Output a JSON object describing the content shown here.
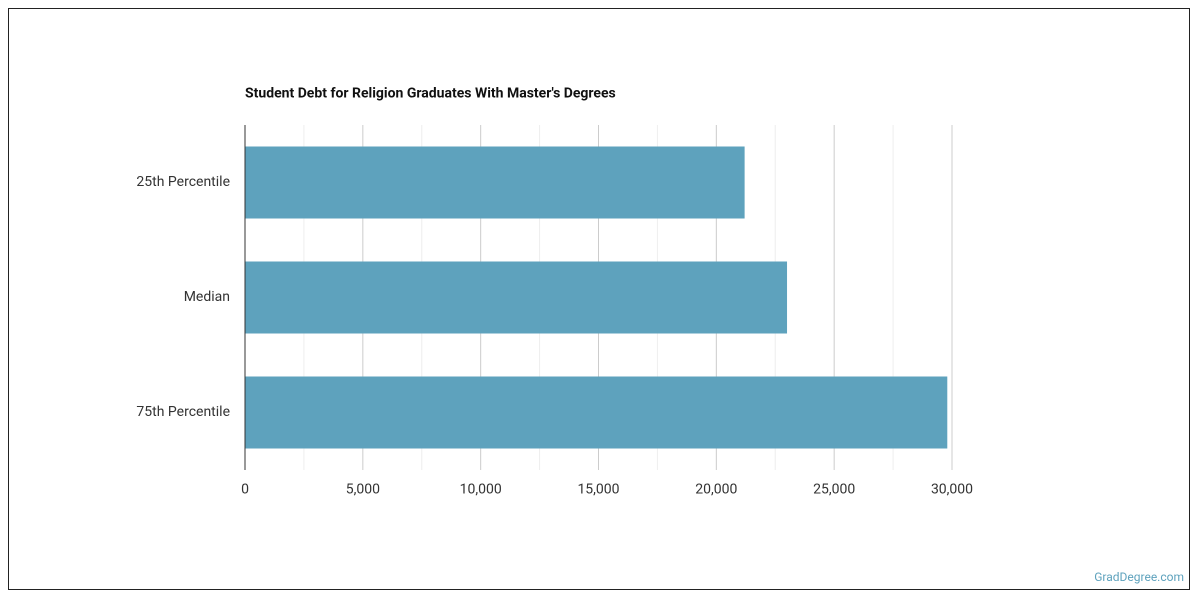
{
  "chart_data": {
    "type": "hbar",
    "title": "Student Debt for Religion Graduates With Master's Degrees",
    "categories": [
      "25th Percentile",
      "Median",
      "75th Percentile"
    ],
    "values": [
      21200,
      23000,
      29800
    ],
    "color": "#5ea2bd",
    "xlim": [
      0,
      30000
    ],
    "xticks": [
      0,
      {
        "value": 5000,
        "label": "5,000"
      },
      {
        "value": 10000,
        "label": "10,000"
      },
      {
        "value": 15000,
        "label": "15,000"
      },
      {
        "value": 20000,
        "label": "20,000"
      },
      {
        "value": 25000,
        "label": "25,000"
      },
      {
        "value": 30000,
        "label": "30,000"
      }
    ],
    "minor_xticks": [
      2500,
      7500,
      12500,
      17500,
      22500,
      27500
    ],
    "grid": true,
    "source": "GradDegree.com"
  }
}
